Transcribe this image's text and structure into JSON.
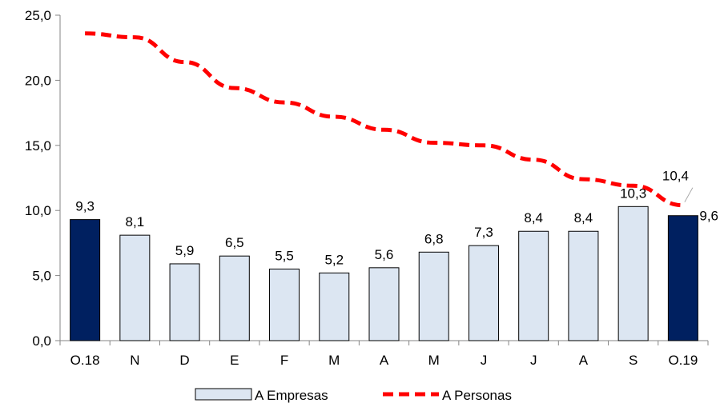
{
  "chart_data": {
    "type": "bar",
    "categories": [
      "O.18",
      "N",
      "D",
      "E",
      "F",
      "M",
      "A",
      "M",
      "J",
      "J",
      "A",
      "S",
      "O.19"
    ],
    "series": [
      {
        "name": "A Empresas",
        "type": "bar",
        "values": [
          9.3,
          8.1,
          5.9,
          6.5,
          5.5,
          5.2,
          5.6,
          6.8,
          7.3,
          8.4,
          8.4,
          10.3,
          9.6
        ],
        "labels": [
          "9,3",
          "8,1",
          "5,9",
          "6,5",
          "5,5",
          "5,2",
          "5,6",
          "6,8",
          "7,3",
          "8,4",
          "8,4",
          "10,3",
          "9,6"
        ],
        "color": "#dce6f2",
        "highlight_color": "#002060",
        "highlight_indices": [
          0,
          12
        ]
      },
      {
        "name": "A Personas",
        "type": "line",
        "style": "dashed",
        "color": "#ff0000",
        "values": [
          23.6,
          23.3,
          21.4,
          19.4,
          18.3,
          17.2,
          16.2,
          15.2,
          15.0,
          13.9,
          12.4,
          11.9,
          10.4
        ],
        "end_label": "10,4"
      }
    ],
    "yaxis": {
      "min": 0,
      "max": 25,
      "ticks": [
        0,
        5,
        10,
        15,
        20,
        25
      ],
      "tick_labels": [
        "0,0",
        "5,0",
        "10,0",
        "15,0",
        "20,0",
        "25,0"
      ]
    },
    "grid": false,
    "legend": "bottom-center"
  }
}
